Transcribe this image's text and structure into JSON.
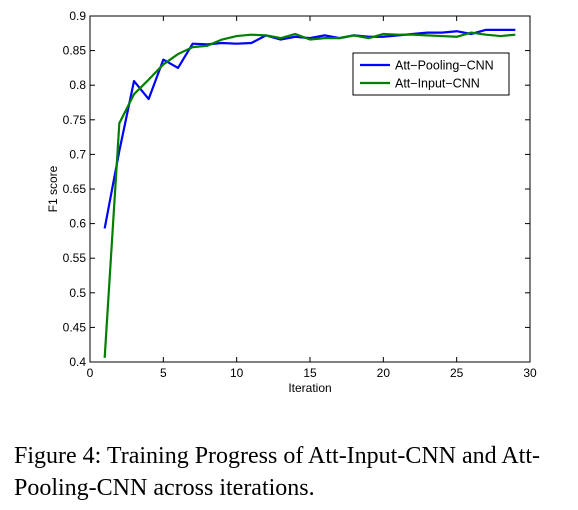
{
  "chart_data": {
    "type": "line",
    "xlabel": "Iteration",
    "ylabel": "F1 score",
    "xlim": [
      0,
      30
    ],
    "ylim": [
      0.4,
      0.9
    ],
    "xticks": [
      0,
      5,
      10,
      15,
      20,
      25,
      30
    ],
    "yticks": [
      0.4,
      0.45,
      0.5,
      0.55,
      0.6,
      0.65,
      0.7,
      0.75,
      0.8,
      0.85,
      0.9
    ],
    "grid": false,
    "legend_position": "top-right",
    "series": [
      {
        "name": "Att−Pooling−CNN",
        "color": "#0000ff",
        "x": [
          1,
          2,
          3,
          4,
          5,
          6,
          7,
          8,
          9,
          10,
          11,
          12,
          13,
          14,
          15,
          16,
          17,
          18,
          19,
          20,
          21,
          22,
          23,
          24,
          25,
          26,
          27,
          28,
          29
        ],
        "y": [
          0.593,
          0.705,
          0.806,
          0.78,
          0.837,
          0.825,
          0.86,
          0.859,
          0.861,
          0.86,
          0.861,
          0.872,
          0.866,
          0.87,
          0.868,
          0.872,
          0.868,
          0.872,
          0.87,
          0.87,
          0.872,
          0.874,
          0.876,
          0.876,
          0.878,
          0.874,
          0.88,
          0.88,
          0.88
        ]
      },
      {
        "name": "Att−Input−CNN",
        "color": "#008000",
        "x": [
          1,
          2,
          3,
          4,
          5,
          6,
          7,
          8,
          9,
          10,
          11,
          12,
          13,
          14,
          15,
          16,
          17,
          18,
          19,
          20,
          21,
          22,
          23,
          24,
          25,
          26,
          27,
          28,
          29
        ],
        "y": [
          0.406,
          0.745,
          0.787,
          0.808,
          0.83,
          0.845,
          0.855,
          0.857,
          0.866,
          0.871,
          0.873,
          0.872,
          0.868,
          0.874,
          0.866,
          0.868,
          0.868,
          0.872,
          0.868,
          0.874,
          0.873,
          0.873,
          0.872,
          0.871,
          0.87,
          0.876,
          0.873,
          0.871,
          0.873
        ]
      }
    ]
  },
  "caption": "Figure 4: Training Progress of Att-Input-CNN and Att-Pooling-CNN across iterations."
}
